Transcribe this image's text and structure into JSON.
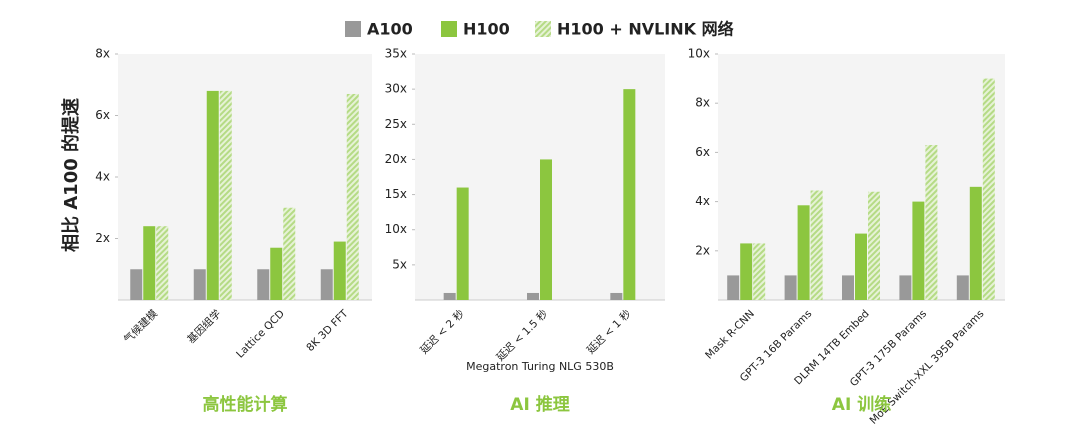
{
  "chart_data": [
    {
      "type": "bar",
      "ylabel": "相比 A100 的提速",
      "xlabel": "高性能计算",
      "categories": [
        "气候建模",
        "基因组学",
        "Lattice QCD",
        "8K 3D FFT"
      ],
      "series": [
        {
          "name": "A100",
          "color": "#999999",
          "values": [
            1,
            1,
            1,
            1
          ]
        },
        {
          "name": "H100",
          "color": "#8cc63f",
          "values": [
            2.4,
            6.8,
            1.7,
            1.9
          ]
        },
        {
          "name": "H100 + NVLINK 网络",
          "color": "#b5db85",
          "hatch": true,
          "values": [
            2.4,
            6.8,
            3.0,
            6.7
          ]
        }
      ],
      "ylim": [
        0,
        8
      ],
      "yticks": [
        {
          "value": 2,
          "label": "2x"
        },
        {
          "value": 4,
          "label": "4x"
        },
        {
          "value": 6,
          "label": "6x"
        },
        {
          "value": 8,
          "label": "8x"
        }
      ]
    },
    {
      "type": "bar",
      "xlabel": "AI 推理",
      "annotation": "Megatron Turing NLG 530B",
      "categories": [
        "延迟 < 2 秒",
        "延迟 < 1.5 秒",
        "延迟 < 1 秒"
      ],
      "series": [
        {
          "name": "A100",
          "color": "#999999",
          "values": [
            1,
            1,
            1
          ]
        },
        {
          "name": "H100",
          "color": "#8cc63f",
          "values": [
            16,
            20,
            30
          ]
        }
      ],
      "ylim": [
        0,
        35
      ],
      "yticks": [
        {
          "value": 5,
          "label": "5x"
        },
        {
          "value": 10,
          "label": "10x"
        },
        {
          "value": 15,
          "label": "15x"
        },
        {
          "value": 20,
          "label": "20x"
        },
        {
          "value": 25,
          "label": "25x"
        },
        {
          "value": 30,
          "label": "30x"
        },
        {
          "value": 35,
          "label": "35x"
        }
      ]
    },
    {
      "type": "bar",
      "xlabel": "AI 训练",
      "categories": [
        "Mask R-CNN",
        "GPT-3 16B Params",
        "DLRM 14TB Embed",
        "GPT-3 175B Params",
        "MoE Switch-XXL 395B Params"
      ],
      "series": [
        {
          "name": "A100",
          "color": "#999999",
          "values": [
            1,
            1,
            1,
            1,
            1
          ]
        },
        {
          "name": "H100",
          "color": "#8cc63f",
          "values": [
            2.3,
            3.85,
            2.7,
            4.0,
            4.6
          ]
        },
        {
          "name": "H100 + NVLINK 网络",
          "color": "#b5db85",
          "hatch": true,
          "values": [
            2.3,
            4.45,
            4.4,
            6.3,
            9.0
          ]
        }
      ],
      "ylim": [
        0,
        10
      ],
      "yticks": [
        {
          "value": 2,
          "label": "2x"
        },
        {
          "value": 4,
          "label": "4x"
        },
        {
          "value": 6,
          "label": "6x"
        },
        {
          "value": 8,
          "label": "8x"
        },
        {
          "value": 10,
          "label": "10x"
        }
      ]
    }
  ]
}
